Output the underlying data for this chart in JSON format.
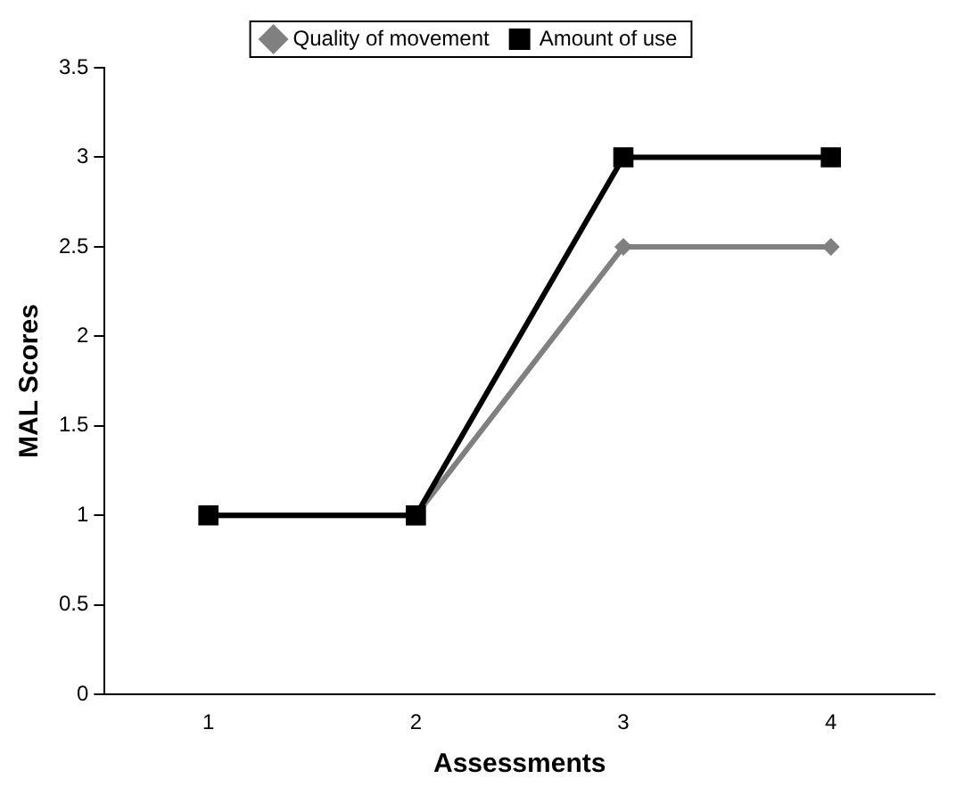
{
  "chart_data": {
    "type": "line",
    "xlabel": "Assessments",
    "ylabel": "MAL Scores",
    "categories": [
      "1",
      "2",
      "3",
      "4"
    ],
    "series": [
      {
        "name": "Quality of movement",
        "color": "#808080",
        "marker": "diamond",
        "values": [
          1,
          1,
          2.5,
          2.5
        ]
      },
      {
        "name": "Amount of use",
        "color": "#000000",
        "marker": "square",
        "values": [
          1,
          1,
          3,
          3
        ]
      }
    ],
    "ylim": [
      0,
      3.5
    ],
    "yticks": [
      0,
      0.5,
      1,
      1.5,
      2,
      2.5,
      3,
      3.5
    ],
    "grid": false,
    "legend": "top",
    "line_style": "solid"
  }
}
